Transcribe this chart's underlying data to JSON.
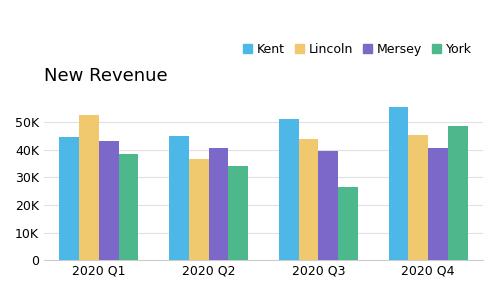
{
  "title": "New Revenue",
  "categories": [
    "2020 Q1",
    "2020 Q2",
    "2020 Q3",
    "2020 Q4"
  ],
  "series": {
    "Kent": [
      44500,
      44800,
      51000,
      55500
    ],
    "Lincoln": [
      52500,
      36500,
      44000,
      45500
    ],
    "Mersey": [
      43000,
      40700,
      39500,
      40700
    ],
    "York": [
      38500,
      34000,
      26500,
      48500
    ]
  },
  "colors": {
    "Kent": "#4db8e8",
    "Lincoln": "#f0c96e",
    "Mersey": "#7b68c8",
    "York": "#4db88c"
  },
  "ylim": [
    0,
    60000
  ],
  "yticks": [
    0,
    10000,
    20000,
    30000,
    40000,
    50000
  ],
  "ytick_labels": [
    "0",
    "10K",
    "20K",
    "30K",
    "40K",
    "50K"
  ],
  "background_color": "#ffffff",
  "title_fontsize": 13,
  "tick_fontsize": 9,
  "legend_fontsize": 9,
  "bar_width": 0.18,
  "grid_color": "#e0e0e0"
}
